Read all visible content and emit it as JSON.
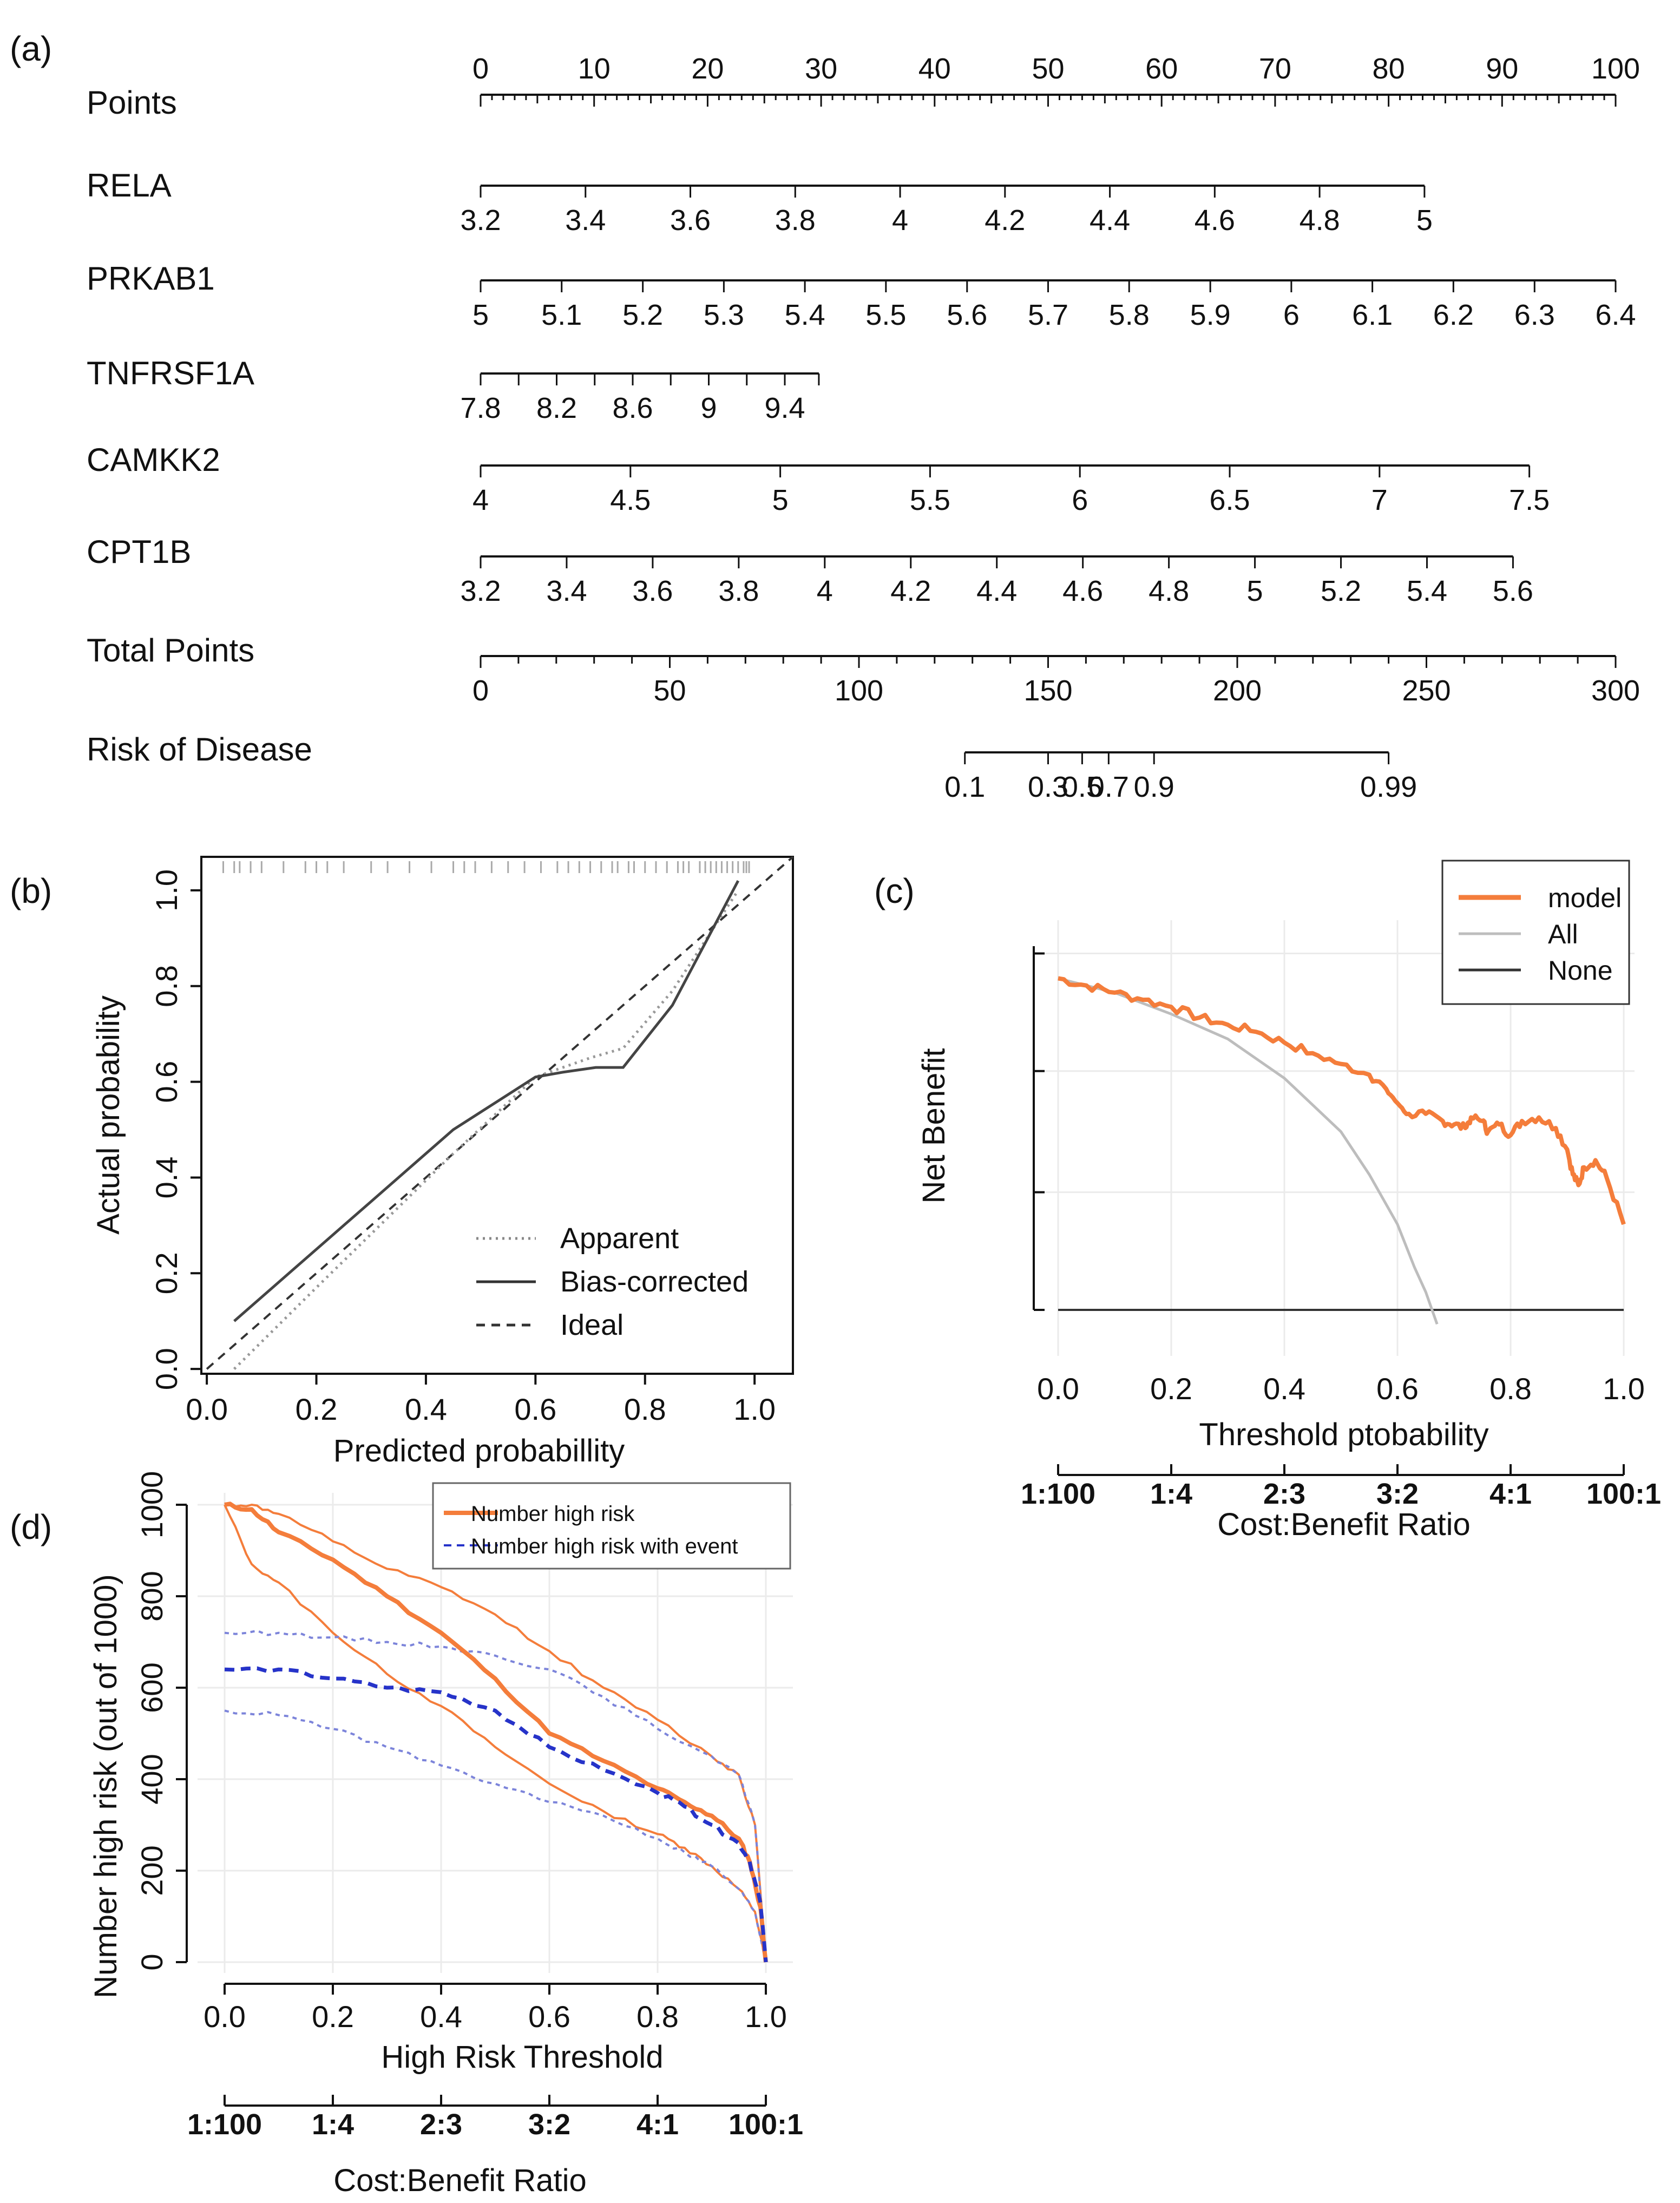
{
  "panel_labels": {
    "a": "(a)",
    "b": "(b)",
    "c": "(c)",
    "d": "(d)"
  },
  "chart_data": [
    {
      "id": "nomogram",
      "type": "nomogram",
      "rows": [
        {
          "name": "Points",
          "ticks": [
            "0",
            "10",
            "20",
            "30",
            "40",
            "50",
            "60",
            "70",
            "80",
            "90",
            "100"
          ],
          "values": [
            0,
            10,
            20,
            30,
            40,
            50,
            60,
            70,
            80,
            90,
            100
          ],
          "range": [
            0,
            100
          ],
          "minor": 1
        },
        {
          "name": "RELA",
          "ticks": [
            "3.2",
            "3.4",
            "3.6",
            "3.8",
            "4",
            "4.2",
            "4.4",
            "4.6",
            "4.8",
            "5"
          ],
          "values": [
            0,
            9.24,
            18.48,
            27.72,
            36.96,
            46.2,
            55.44,
            64.68,
            73.92,
            83.16
          ]
        },
        {
          "name": "PRKAB1",
          "ticks": [
            "5",
            "5.1",
            "5.2",
            "5.3",
            "5.4",
            "5.5",
            "5.6",
            "5.7",
            "5.8",
            "5.9",
            "6",
            "6.1",
            "6.2",
            "6.3",
            "6.4"
          ],
          "values": [
            0,
            7.14,
            14.29,
            21.43,
            28.57,
            35.71,
            42.86,
            50,
            57.14,
            64.29,
            71.43,
            78.57,
            85.71,
            92.86,
            100
          ]
        },
        {
          "name": "TNFRSF1A",
          "ticks": [
            "7.8",
            "8.2",
            "8.6",
            "9",
            "9.4"
          ],
          "values": [
            0,
            6.7,
            13.4,
            20.1,
            26.8
          ],
          "end": 29.8,
          "extra_ticks": [
            3.35,
            10.05,
            16.75,
            23.45
          ]
        },
        {
          "name": "CAMKK2",
          "ticks": [
            "4",
            "4.5",
            "5",
            "5.5",
            "6",
            "6.5",
            "7",
            "7.5"
          ],
          "values": [
            0,
            13.2,
            26.4,
            39.6,
            52.8,
            66,
            79.2,
            92.4
          ]
        },
        {
          "name": "CPT1B",
          "ticks": [
            "3.2",
            "3.4",
            "3.6",
            "3.8",
            "4",
            "4.2",
            "4.4",
            "4.6",
            "4.8",
            "5",
            "5.2",
            "5.4",
            "5.6"
          ],
          "values": [
            0,
            7.58,
            15.16,
            22.74,
            30.32,
            37.9,
            45.48,
            53.06,
            60.64,
            68.22,
            75.8,
            83.38,
            90.96
          ]
        },
        {
          "name": "Total Points",
          "ticks": [
            "0",
            "50",
            "100",
            "150",
            "200",
            "250",
            "300"
          ],
          "values": [
            0,
            50,
            100,
            150,
            200,
            250,
            300
          ],
          "range": [
            0,
            300
          ],
          "minor": 10
        },
        {
          "name": "Risk of Disease",
          "ticks": [
            "0.1",
            "0.3",
            "0.5",
            "0.7",
            "0.9",
            "0.99"
          ],
          "values": [
            128,
            150,
            159,
            166,
            178,
            240
          ],
          "range": [
            0,
            300
          ]
        }
      ]
    },
    {
      "id": "calibration",
      "type": "line",
      "xlabel": "Predicted probabillity",
      "ylabel": "Actual probability",
      "xlim": [
        -0.01,
        1.07
      ],
      "ylim": [
        -0.01,
        1.07
      ],
      "xticks": [
        "0.0",
        "0.2",
        "0.4",
        "0.6",
        "0.8",
        "1.0"
      ],
      "yticks": [
        "0.0",
        "0.2",
        "0.4",
        "0.6",
        "0.8",
        "1.0"
      ],
      "legend": [
        "Apparent",
        "Bias-corrected",
        "Ideal"
      ],
      "series": [
        {
          "name": "Apparent",
          "x": [
            0.05,
            0.2,
            0.45,
            0.6,
            0.7,
            0.76,
            0.85,
            0.97
          ],
          "y": [
            0.0,
            0.17,
            0.45,
            0.61,
            0.65,
            0.67,
            0.79,
            1.0
          ]
        },
        {
          "name": "Bias-corrected",
          "x": [
            0.05,
            0.15,
            0.3,
            0.45,
            0.6,
            0.65,
            0.71,
            0.76,
            0.85,
            0.97
          ],
          "y": [
            0.1,
            0.2,
            0.35,
            0.5,
            0.61,
            0.62,
            0.63,
            0.63,
            0.76,
            1.02
          ]
        },
        {
          "name": "Ideal",
          "x": [
            0,
            1.07
          ],
          "y": [
            0,
            1.07
          ]
        }
      ],
      "rug": [
        0.03,
        0.05,
        0.06,
        0.08,
        0.1,
        0.14,
        0.18,
        0.2,
        0.22,
        0.25,
        0.3,
        0.33,
        0.37,
        0.41,
        0.45,
        0.47,
        0.49,
        0.52,
        0.55,
        0.58,
        0.61,
        0.64,
        0.66,
        0.68,
        0.7,
        0.72,
        0.74,
        0.75,
        0.77,
        0.78,
        0.8,
        0.82,
        0.84,
        0.86,
        0.87,
        0.88,
        0.9,
        0.91,
        0.92,
        0.93,
        0.94,
        0.95,
        0.96,
        0.97,
        0.98,
        0.985,
        0.99
      ]
    },
    {
      "id": "dca",
      "type": "line",
      "xlabel": "Threshold ptobability",
      "ylabel": "Net Benefit",
      "xlim": [
        -0.05,
        1.0
      ],
      "ylim": [
        0,
        1
      ],
      "xticks": [
        "0.0",
        "0.2",
        "0.4",
        "0.6",
        "0.8",
        "1.0"
      ],
      "ratio_label": "Cost:Benefit Ratio",
      "ratio_ticks": [
        "1:100",
        "1:4",
        "2:3",
        "3:2",
        "4:1",
        "100:1"
      ],
      "legend": [
        "model",
        "All",
        "None"
      ],
      "series": [
        {
          "name": "model",
          "x": [
            0,
            0.05,
            0.1,
            0.15,
            0.2,
            0.25,
            0.3,
            0.35,
            0.4,
            0.45,
            0.5,
            0.55,
            0.58,
            0.6,
            0.62,
            0.65,
            0.68,
            0.7,
            0.72,
            0.73,
            0.75,
            0.76,
            0.78,
            0.8,
            0.82,
            0.85,
            0.88,
            0.9,
            0.91,
            0.92,
            0.93,
            0.95,
            0.97,
            1.0
          ],
          "y": [
            0.93,
            0.91,
            0.89,
            0.87,
            0.85,
            0.82,
            0.8,
            0.78,
            0.75,
            0.72,
            0.69,
            0.66,
            0.62,
            0.58,
            0.55,
            0.55,
            0.53,
            0.52,
            0.51,
            0.54,
            0.53,
            0.5,
            0.52,
            0.49,
            0.53,
            0.54,
            0.51,
            0.45,
            0.38,
            0.35,
            0.4,
            0.42,
            0.37,
            0.24
          ]
        },
        {
          "name": "All",
          "x": [
            0,
            0.1,
            0.2,
            0.3,
            0.4,
            0.5,
            0.55,
            0.6,
            0.63,
            0.65,
            0.67
          ],
          "y": [
            0.93,
            0.89,
            0.83,
            0.76,
            0.65,
            0.5,
            0.38,
            0.24,
            0.12,
            0.05,
            -0.04
          ]
        },
        {
          "name": "None",
          "x": [
            0,
            1.0
          ],
          "y": [
            0.0,
            0.0
          ]
        }
      ]
    },
    {
      "id": "clinical-impact",
      "type": "line",
      "xlabel": "High Risk Threshold",
      "ylabel": "Number high risk (out of 1000)",
      "xlim": [
        -0.05,
        1.05
      ],
      "ylim": [
        -20,
        1040
      ],
      "xticks": [
        "0.0",
        "0.2",
        "0.4",
        "0.6",
        "0.8",
        "1.0"
      ],
      "yticks": [
        "0",
        "200",
        "400",
        "600",
        "800",
        "1000"
      ],
      "ratio_label": "Cost:Benefit Ratio",
      "ratio_ticks": [
        "1:100",
        "1:4",
        "2:3",
        "3:2",
        "4:1",
        "100:1"
      ],
      "legend": [
        "Number high risk",
        "Number high risk with event"
      ],
      "series": [
        {
          "name": "Number high risk",
          "x": [
            0,
            0.05,
            0.1,
            0.2,
            0.3,
            0.4,
            0.5,
            0.6,
            0.7,
            0.8,
            0.85,
            0.9,
            0.95,
            0.97,
            0.99,
            1.0
          ],
          "y": [
            1000,
            990,
            940,
            880,
            800,
            720,
            620,
            500,
            440,
            380,
            350,
            320,
            270,
            220,
            120,
            0
          ]
        },
        {
          "name": "Number high risk upper",
          "x": [
            0,
            0.05,
            0.1,
            0.2,
            0.3,
            0.4,
            0.5,
            0.6,
            0.7,
            0.8,
            0.9,
            0.95,
            0.98,
            1.0
          ],
          "y": [
            1000,
            1000,
            980,
            920,
            860,
            820,
            760,
            680,
            600,
            530,
            450,
            410,
            300,
            0
          ]
        },
        {
          "name": "Number high risk lower",
          "x": [
            0,
            0.05,
            0.1,
            0.2,
            0.3,
            0.4,
            0.5,
            0.6,
            0.7,
            0.8,
            0.85,
            0.9,
            0.95,
            0.98,
            1.0
          ],
          "y": [
            1000,
            870,
            830,
            720,
            630,
            560,
            470,
            390,
            330,
            280,
            250,
            210,
            160,
            110,
            0
          ]
        },
        {
          "name": "Number high risk with event",
          "x": [
            0,
            0.1,
            0.2,
            0.3,
            0.4,
            0.5,
            0.6,
            0.7,
            0.8,
            0.85,
            0.9,
            0.95,
            0.97,
            0.99,
            1.0
          ],
          "y": [
            640,
            640,
            620,
            600,
            590,
            550,
            470,
            420,
            370,
            340,
            300,
            260,
            220,
            130,
            0
          ]
        },
        {
          "name": "Number high risk with event upper",
          "x": [
            0,
            0.1,
            0.2,
            0.3,
            0.4,
            0.5,
            0.6,
            0.7,
            0.8,
            0.9,
            0.95,
            0.98,
            1.0
          ],
          "y": [
            720,
            720,
            710,
            700,
            690,
            670,
            640,
            580,
            510,
            450,
            410,
            300,
            0
          ]
        },
        {
          "name": "Number high risk with event lower",
          "x": [
            0,
            0.1,
            0.2,
            0.3,
            0.4,
            0.5,
            0.6,
            0.7,
            0.8,
            0.85,
            0.9,
            0.95,
            0.98,
            1.0
          ],
          "y": [
            550,
            540,
            510,
            470,
            430,
            390,
            350,
            320,
            270,
            240,
            210,
            160,
            110,
            0
          ]
        }
      ]
    }
  ],
  "colors": {
    "orange": "#f47d3b",
    "blue": "#2633c9",
    "lightblue": "#7c84da",
    "gray": "#bdbdbd",
    "dark": "#333333"
  }
}
